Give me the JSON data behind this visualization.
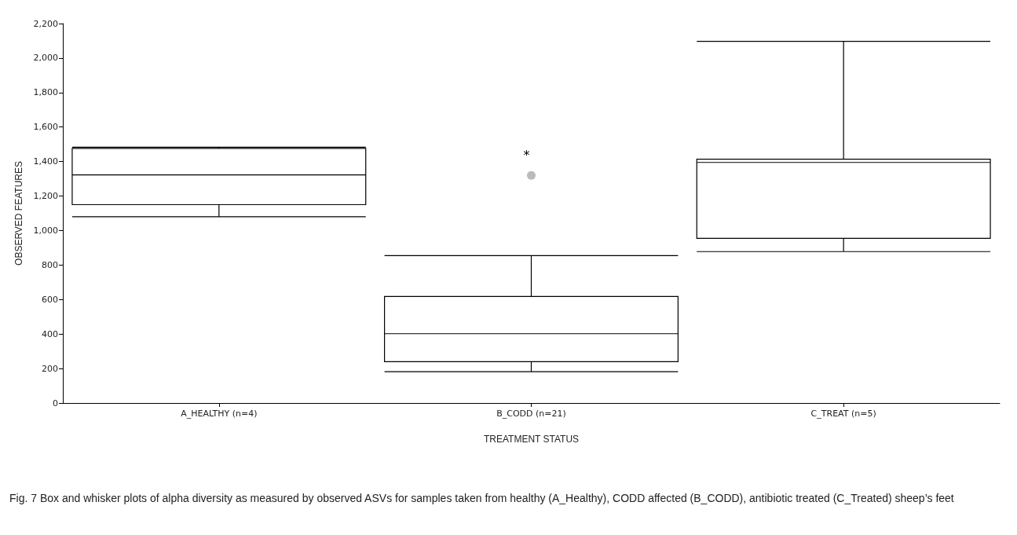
{
  "chart_data": {
    "type": "box",
    "xlabel": "TREATMENT STATUS",
    "ylabel": "OBSERVED FEATURES",
    "categories": [
      "A_HEALTHY (n=4)",
      "B_CODD (n=21)",
      "C_TREAT (n=5)"
    ],
    "color": "#000000",
    "boxes": [
      {
        "low": 1080,
        "q1": 1150,
        "median": 1323,
        "q3": 1476,
        "high": 1483
      },
      {
        "low": 182,
        "q1": 240,
        "median": 402,
        "q3": 618,
        "high": 855,
        "outliers": [
          1320
        ]
      },
      {
        "low": 878,
        "q1": 955,
        "median": 1395,
        "q3": 1414,
        "high": 2097
      }
    ],
    "ylim": [
      0,
      2200
    ],
    "yticks": [
      0,
      200,
      400,
      600,
      800,
      {
        "value": 1000,
        "label": "1,000"
      },
      {
        "value": 1200,
        "label": "1,200"
      },
      {
        "value": 1400,
        "label": "1,400"
      },
      {
        "value": 1600,
        "label": "1,600"
      },
      {
        "value": 1800,
        "label": "1,800"
      },
      {
        "value": 2000,
        "label": "2,000"
      },
      {
        "value": 2200,
        "label": "2,200"
      }
    ],
    "grid": false,
    "annotations": [
      "*",
      "Fig. 7 Box and whisker plots of alpha diversity as measured by observed ASVs for samples taken from healthy (A_Healthy), CODD affected (B_CODD), antibiotic treated (C_Treated) sheep’s feet"
    ]
  }
}
